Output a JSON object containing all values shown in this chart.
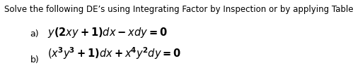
{
  "background_color": "#ffffff",
  "text_color": "#000000",
  "instruction_text": "Solve the following DE’s using Integrating Factor by Inspection or by applying Table 1.",
  "part_a_label": "a)",
  "part_a_eq": "$\\mathbf{\\it{y}}(2\\mathbf{\\it{xy}}+1)\\mathbf{\\it{dx}}-\\mathbf{\\it{xdy}}=0$",
  "part_b_label": "b)",
  "part_b_eq": "$(\\mathbf{\\it{x}}^3\\mathbf{\\it{y}}^3+1)\\mathbf{\\it{dx}}+\\mathbf{\\it{x}}^4\\mathbf{\\it{y}}^2\\mathbf{\\it{dy}}=0$",
  "instruction_fontsize": 8.5,
  "label_fontsize": 9.0,
  "eq_fontsize": 10.5,
  "fig_width": 4.99,
  "fig_height": 0.97,
  "dpi": 100
}
